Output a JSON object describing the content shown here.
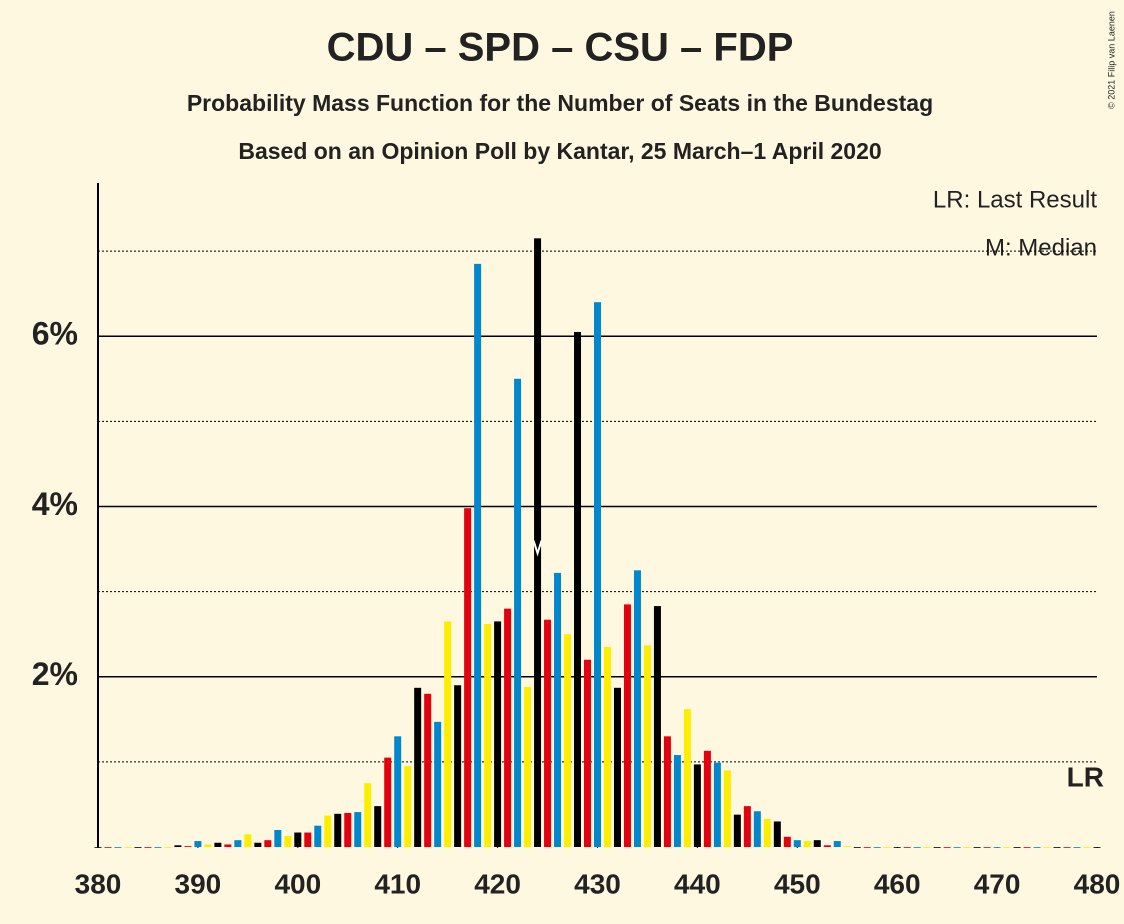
{
  "chart_data": {
    "type": "bar",
    "title": "CDU – SPD – CSU – FDP",
    "subtitle": "Probability Mass Function for the Number of Seats in the Bundestag",
    "subtitle2": "Based on an Opinion Poll by Kantar, 25 March–1 April 2020",
    "legend_lr": "LR: Last Result",
    "legend_median": "M: Median",
    "lr_label": "LR",
    "copyright": "© 2021 Filip van Laenen",
    "median": 424,
    "colors": [
      "#000000",
      "#e3000f",
      "#0087ce",
      "#ffed00"
    ],
    "x": [
      380,
      381,
      382,
      383,
      384,
      385,
      386,
      387,
      388,
      389,
      390,
      391,
      392,
      393,
      394,
      395,
      396,
      397,
      398,
      399,
      400,
      401,
      402,
      403,
      404,
      405,
      406,
      407,
      408,
      409,
      410,
      411,
      412,
      413,
      414,
      415,
      416,
      417,
      418,
      419,
      420,
      421,
      422,
      423,
      424,
      425,
      426,
      427,
      428,
      429,
      430,
      431,
      432,
      433,
      434,
      435,
      436,
      437,
      438,
      439,
      440,
      441,
      442,
      443,
      444,
      445,
      446,
      447,
      448,
      449,
      450,
      451,
      452,
      453,
      454,
      455,
      456,
      457,
      458,
      459,
      460,
      461,
      462,
      463,
      464,
      465,
      466,
      467,
      468,
      469,
      470,
      471,
      472,
      473,
      474,
      475,
      476,
      477,
      478,
      479,
      480
    ],
    "values": [
      0,
      0,
      0,
      0,
      0,
      0,
      0,
      0,
      0.02,
      0.01,
      0.07,
      0.03,
      0.05,
      0.03,
      0.08,
      0.15,
      0.05,
      0.08,
      0.2,
      0.13,
      0.17,
      0.17,
      0.25,
      0.37,
      0.39,
      0.4,
      0.41,
      0.75,
      0.48,
      1.05,
      1.3,
      0.95,
      1.87,
      1.8,
      1.47,
      2.65,
      1.9,
      3.98,
      6.85,
      2.62,
      2.65,
      2.8,
      5.5,
      1.88,
      7.15,
      2.67,
      3.22,
      2.5,
      6.05,
      2.2,
      6.4,
      2.35,
      1.87,
      2.85,
      3.25,
      2.37,
      2.83,
      1.3,
      1.08,
      1.62,
      0.97,
      1.13,
      0.99,
      0.9,
      0.38,
      0.48,
      0.42,
      0.33,
      0.3,
      0.12,
      0.08,
      0.07,
      0.08,
      0.02,
      0.07,
      0.01,
      0,
      0,
      0,
      0,
      0,
      0,
      0,
      0,
      0,
      0,
      0,
      0,
      0,
      0,
      0,
      0,
      0,
      0,
      0,
      0,
      0,
      0,
      0,
      0,
      0
    ],
    "xlim": [
      380,
      480
    ],
    "xticks": [
      380,
      390,
      400,
      410,
      420,
      430,
      440,
      450,
      460,
      470,
      480
    ],
    "ylim": [
      0,
      7.8
    ],
    "yticks": [
      {
        "value": 2,
        "label": "2%"
      },
      {
        "value": 4,
        "label": "4%"
      },
      {
        "value": 6,
        "label": "6%"
      }
    ],
    "minor_gridlines": [
      1,
      3,
      5,
      7
    ],
    "grid": true
  }
}
